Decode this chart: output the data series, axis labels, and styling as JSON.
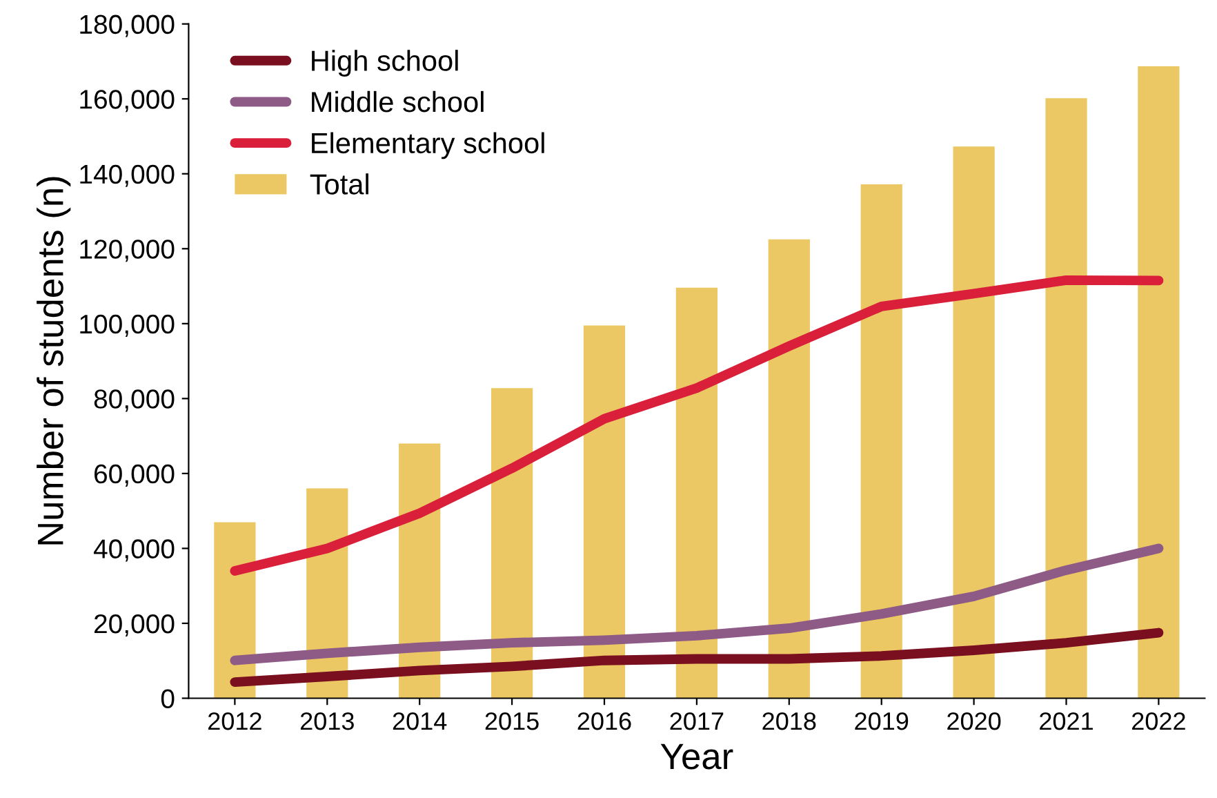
{
  "chart_data": {
    "type": "line",
    "xlabel": "Year",
    "ylabel": "Number of students (n)",
    "categories": [
      "2012",
      "2013",
      "2014",
      "2015",
      "2016",
      "2017",
      "2018",
      "2019",
      "2020",
      "2021",
      "2022"
    ],
    "series": [
      {
        "name": "High school",
        "color": "#7a0f1f",
        "values": [
          4300,
          5800,
          7400,
          8500,
          10100,
          10500,
          10500,
          11300,
          12800,
          14800,
          17500
        ]
      },
      {
        "name": "Middle school",
        "color": "#8e5a86",
        "values": [
          10100,
          12000,
          13600,
          14800,
          15500,
          16700,
          18700,
          22500,
          27200,
          34200,
          40000
        ]
      },
      {
        "name": "Elementary school",
        "color": "#d91f3a",
        "values": [
          34000,
          40000,
          49400,
          61400,
          74600,
          82800,
          94000,
          104600,
          108000,
          111600,
          111500
        ]
      },
      {
        "name": "Total",
        "type": "bar",
        "color": "#ecc865",
        "values": [
          47000,
          56000,
          68000,
          82800,
          99500,
          109600,
          122500,
          137200,
          147300,
          160200,
          168700
        ]
      }
    ],
    "ylim": [
      0,
      180000
    ],
    "yticks": [
      {
        "value": 0,
        "label": "0"
      },
      {
        "value": 20000,
        "label": "20,000"
      },
      {
        "value": 40000,
        "label": "40,000"
      },
      {
        "value": 60000,
        "label": "60,000"
      },
      {
        "value": 80000,
        "label": "80,000"
      },
      {
        "value": 100000,
        "label": "100,000"
      },
      {
        "value": 120000,
        "label": "120,000"
      },
      {
        "value": 140000,
        "label": "140,000"
      },
      {
        "value": 160000,
        "label": "160,000"
      },
      {
        "value": 180000,
        "label": "180,000"
      }
    ],
    "grid": false,
    "legend": "top left",
    "line_style": "solid",
    "marker": "none"
  }
}
